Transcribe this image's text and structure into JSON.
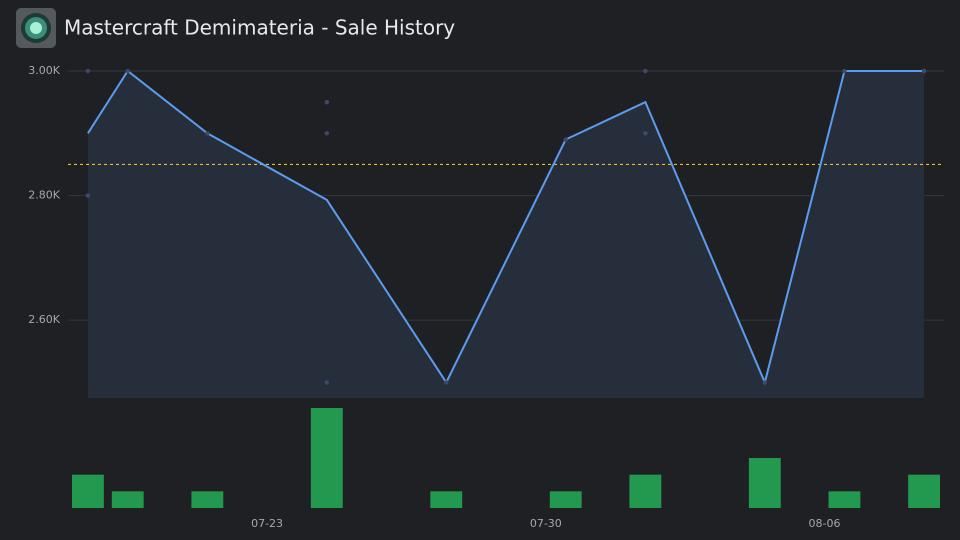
{
  "header": {
    "title": "Mastercraft Demimateria - Sale History"
  },
  "chart_data": [
    {
      "type": "line",
      "x": [
        "07-18",
        "07-19",
        "07-21",
        "07-24",
        "07-27",
        "07-30",
        "08-01",
        "08-04",
        "08-06",
        "08-08"
      ],
      "values": [
        2900,
        3000,
        2900,
        2793,
        2500,
        2890,
        2950,
        2500,
        3000,
        3000
      ],
      "color": "#5b9cf0",
      "area_color": "#272e3b",
      "xlim": [
        "07-18",
        "08-09"
      ],
      "ylim": [
        2475,
        3000
      ],
      "yticks": [
        {
          "value": 2600,
          "label": "2.60K"
        },
        {
          "value": 2800,
          "label": "2.80K"
        },
        {
          "value": 3000,
          "label": "3.00K"
        }
      ],
      "grid": true,
      "reference_line": {
        "value": 2850,
        "color": "#e3c02a"
      }
    },
    {
      "type": "scatter",
      "x": [
        "07-18",
        "07-18",
        "07-19",
        "07-21",
        "07-24",
        "07-24",
        "07-24",
        "07-27",
        "07-30",
        "08-01",
        "08-01",
        "08-04",
        "08-06",
        "08-08",
        "08-08"
      ],
      "values": [
        3000,
        2800,
        3000,
        2900,
        2950,
        2900,
        2500,
        2500,
        2890,
        2900,
        3000,
        2500,
        3000,
        3000,
        3000
      ],
      "color": "#3e4b68",
      "xlim": [
        "07-18",
        "08-09"
      ],
      "ylim": [
        2475,
        3000
      ]
    },
    {
      "type": "bar",
      "x": [
        "07-18",
        "07-19",
        "07-21",
        "07-24",
        "07-27",
        "07-30",
        "08-01",
        "08-04",
        "08-06",
        "08-08"
      ],
      "values": [
        2,
        1,
        1,
        6,
        1,
        1,
        2,
        3,
        1,
        2
      ],
      "color": "#22994f",
      "xlim": [
        "07-18",
        "08-09"
      ],
      "ylim": [
        0,
        6
      ],
      "xticks": [
        "07-23",
        "07-30",
        "08-06"
      ]
    }
  ]
}
